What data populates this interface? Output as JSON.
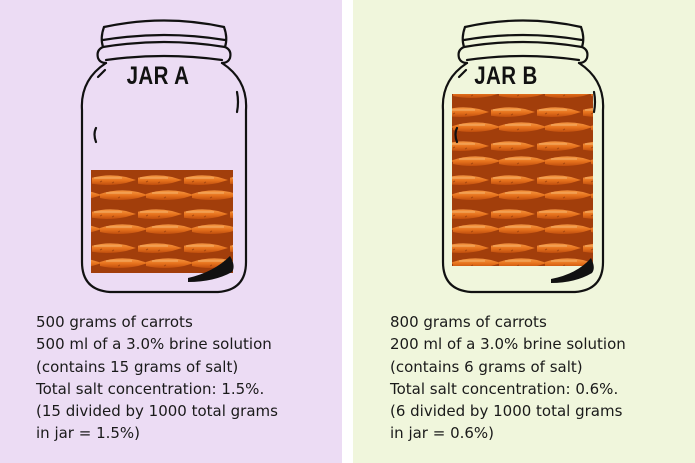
{
  "colors": {
    "panel_a_bg": "#ecdcf4",
    "panel_b_bg": "#f0f6dc",
    "divider": "#ffffff",
    "carrot": "#f07a22"
  },
  "jar_a": {
    "label": "JAR A",
    "image": "carrots-photo",
    "lines": [
      "500 grams of carrots",
      "500 ml of a 3.0% brine solution",
      "(contains 15 grams of salt)",
      "Total salt concentration: 1.5%.",
      "(15 divided by 1000 total grams",
      "in jar = 1.5%)"
    ]
  },
  "jar_b": {
    "label": "JAR B",
    "image": "carrots-photo",
    "lines": [
      "800 grams of carrots",
      "200 ml of a 3.0% brine solution",
      "(contains 6 grams of salt)",
      "Total salt concentration: 0.6%.",
      "(6 divided by 1000 total grams",
      "in jar = 0.6%)"
    ]
  }
}
